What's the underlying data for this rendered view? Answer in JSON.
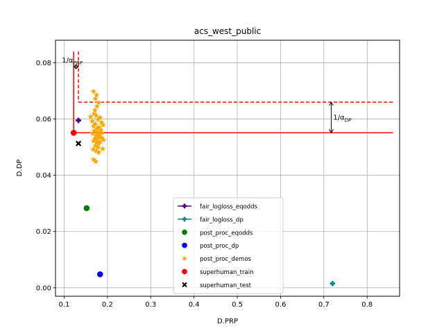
{
  "chart_data": {
    "type": "scatter",
    "title": "acs_west_public",
    "xlabel": "D.PRP",
    "ylabel": "D.DP",
    "xlim": [
      0.08,
      0.875
    ],
    "ylim": [
      -0.003,
      0.088
    ],
    "xticks": [
      0.1,
      0.2,
      0.3,
      0.4,
      0.5,
      0.6,
      0.7,
      0.8
    ],
    "yticks": [
      0.0,
      0.02,
      0.04,
      0.06,
      0.08
    ],
    "xtick_labels": [
      "0.1",
      "0.2",
      "0.3",
      "0.4",
      "0.5",
      "0.6",
      "0.7",
      "0.8"
    ],
    "ytick_labels": [
      "0.00",
      "0.02",
      "0.04",
      "0.06",
      "0.08"
    ],
    "grid": true,
    "legend_position": "lower-center",
    "series": [
      {
        "name": "fair_logloss_eqodds",
        "marker": "plus",
        "color": "#4b0082",
        "points": [
          [
            0.133,
            0.0595
          ]
        ]
      },
      {
        "name": "fair_logloss_dp",
        "marker": "plus",
        "color": "#008b8b",
        "points": [
          [
            0.72,
            0.0015
          ]
        ]
      },
      {
        "name": "post_proc_eqodds",
        "marker": "circle",
        "color": "#008000",
        "points": [
          [
            0.152,
            0.0283
          ]
        ]
      },
      {
        "name": "post_proc_dp",
        "marker": "circle",
        "color": "#0000ff",
        "points": [
          [
            0.183,
            0.0048
          ]
        ]
      },
      {
        "name": "post_proc_demos",
        "marker": "star",
        "color": "#ffa500",
        "points": [
          [
            0.168,
            0.0698
          ],
          [
            0.175,
            0.0685
          ],
          [
            0.172,
            0.0672
          ],
          [
            0.18,
            0.0658
          ],
          [
            0.176,
            0.0645
          ],
          [
            0.171,
            0.0631
          ],
          [
            0.169,
            0.0618
          ],
          [
            0.174,
            0.0612
          ],
          [
            0.161,
            0.0608
          ],
          [
            0.183,
            0.0605
          ],
          [
            0.178,
            0.0598
          ],
          [
            0.165,
            0.0592
          ],
          [
            0.186,
            0.0588
          ],
          [
            0.172,
            0.0582
          ],
          [
            0.19,
            0.0579
          ],
          [
            0.168,
            0.0574
          ],
          [
            0.18,
            0.0571
          ],
          [
            0.176,
            0.0566
          ],
          [
            0.185,
            0.0561
          ],
          [
            0.17,
            0.0558
          ],
          [
            0.178,
            0.0554
          ],
          [
            0.188,
            0.0551
          ],
          [
            0.166,
            0.0548
          ],
          [
            0.182,
            0.0545
          ],
          [
            0.174,
            0.0542
          ],
          [
            0.179,
            0.0538
          ],
          [
            0.186,
            0.0534
          ],
          [
            0.171,
            0.0531
          ],
          [
            0.177,
            0.0528
          ],
          [
            0.191,
            0.0526
          ],
          [
            0.168,
            0.0522
          ],
          [
            0.183,
            0.0519
          ],
          [
            0.175,
            0.0516
          ],
          [
            0.18,
            0.0512
          ],
          [
            0.172,
            0.0505
          ],
          [
            0.178,
            0.0499
          ],
          [
            0.167,
            0.0492
          ],
          [
            0.189,
            0.0494
          ],
          [
            0.174,
            0.0486
          ],
          [
            0.18,
            0.0481
          ],
          [
            0.168,
            0.0456
          ],
          [
            0.173,
            0.0449
          ]
        ]
      },
      {
        "name": "superhuman_train",
        "marker": "circle",
        "color": "#ff0000",
        "points": [
          [
            0.122,
            0.0551
          ]
        ]
      },
      {
        "name": "superhuman_test",
        "marker": "x",
        "color": "#000000",
        "points": [
          [
            0.133,
            0.0513
          ]
        ]
      }
    ],
    "reference_lines": [
      {
        "style": "solid",
        "color": "#ff0000",
        "x0": 0.122,
        "y0": 0.0551,
        "x_end": 0.86,
        "y_top": 0.084
      },
      {
        "style": "dashed",
        "color": "#ff0000",
        "x0": 0.133,
        "y0": 0.066,
        "x_end": 0.86,
        "y_top": 0.084
      }
    ],
    "annotations": [
      {
        "text": "1/α",
        "subscript": "PRP",
        "arrow": "horizontal",
        "x_from": 0.122,
        "x_to": 0.133,
        "y": 0.0786
      },
      {
        "text": "1/α",
        "subscript": "DP",
        "arrow": "vertical",
        "x": 0.717,
        "y_from": 0.0551,
        "y_to": 0.066
      }
    ]
  }
}
